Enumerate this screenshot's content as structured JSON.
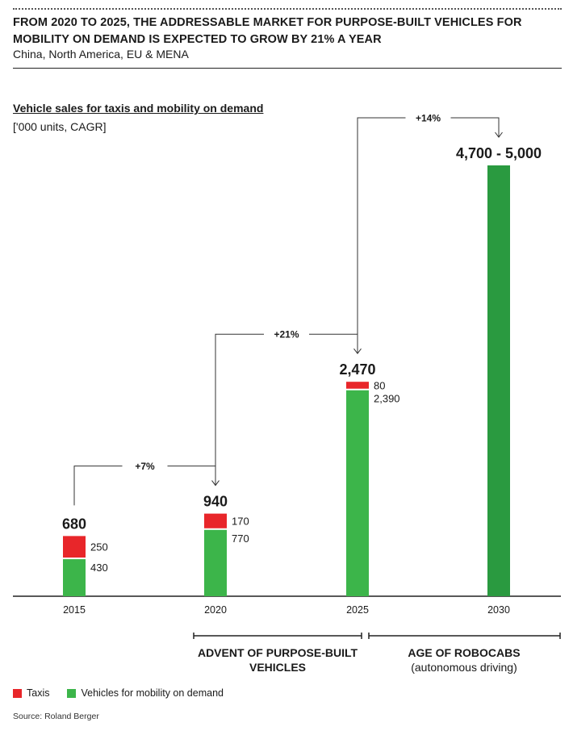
{
  "header": {
    "title": "FROM 2020 TO 2025, THE ADDRESSABLE MARKET FOR PURPOSE-BUILT VEHICLES FOR MOBILITY ON DEMAND IS EXPECTED TO GROW BY 21% A YEAR",
    "subtitle": "China, North America, EU & MENA"
  },
  "colors": {
    "taxis": "#e8262a",
    "mod": "#3cb54a",
    "mod_2030": "#2a9a40"
  },
  "chart_data": {
    "type": "bar",
    "stacked": true,
    "title": "Vehicle sales for taxis and mobility on demand",
    "unit_label": "['000 units, CAGR]",
    "categories": [
      "2015",
      "2020",
      "2025",
      "2030"
    ],
    "series": [
      {
        "name": "Taxis",
        "values": [
          250,
          170,
          80,
          null
        ],
        "labels": [
          "250",
          "170",
          "80",
          ""
        ]
      },
      {
        "name": "Vehicles for mobility on demand",
        "values": [
          430,
          770,
          2390,
          5000
        ],
        "labels": [
          "430",
          "770",
          "2,390",
          ""
        ]
      }
    ],
    "totals": [
      680,
      940,
      2470,
      5000
    ],
    "total_labels": [
      "680",
      "940",
      "2,470",
      "4,700 - 5,000"
    ],
    "growth": [
      {
        "from": "2015",
        "to": "2020",
        "label": "+7%"
      },
      {
        "from": "2020",
        "to": "2025",
        "label": "+21%"
      },
      {
        "from": "2025",
        "to": "2030",
        "label": "+14%"
      }
    ],
    "ylim": [
      0,
      5000
    ],
    "grid": false
  },
  "eras": [
    {
      "title": "ADVENT OF PURPOSE-BUILT VEHICLES",
      "note": ""
    },
    {
      "title": "AGE OF ROBOCABS",
      "note": "(autonomous driving)"
    }
  ],
  "legend": {
    "taxis": "Taxis",
    "mod": "Vehicles for mobility on demand"
  },
  "source": "Source: Roland Berger"
}
